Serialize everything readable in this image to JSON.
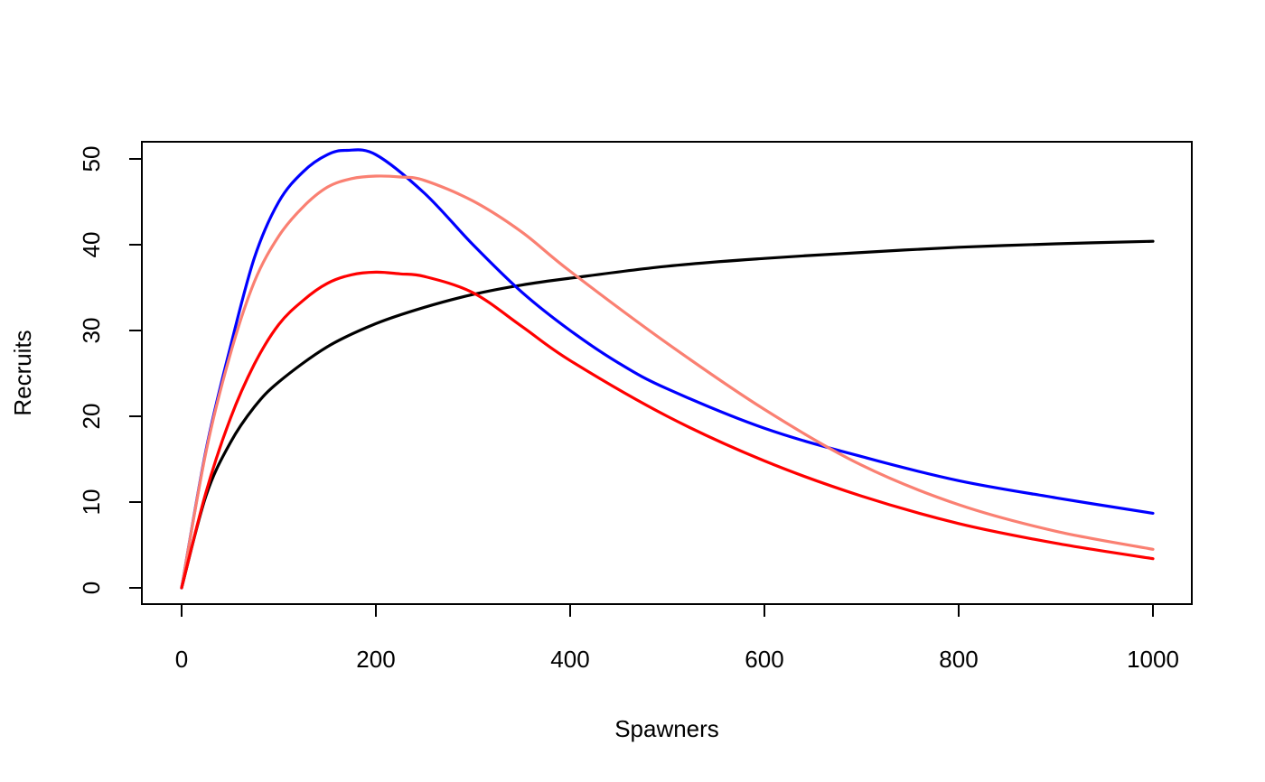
{
  "chart_data": {
    "type": "line",
    "title": "",
    "xlabel": "Spawners",
    "ylabel": "Recruits",
    "xlim": [
      0,
      1000
    ],
    "ylim": [
      0,
      52
    ],
    "xticks": [
      0,
      200,
      400,
      600,
      800,
      1000
    ],
    "yticks": [
      0,
      10,
      20,
      30,
      40,
      50
    ],
    "xtick_labels": [
      "0",
      "200",
      "400",
      "600",
      "800",
      "1000"
    ],
    "ytick_labels": [
      "0",
      "10",
      "20",
      "30",
      "40",
      "50"
    ],
    "grid": false,
    "legend": "none",
    "series": [
      {
        "color": "#000000",
        "x": [
          0,
          25,
          50,
          75,
          100,
          150,
          200,
          250,
          300,
          350,
          400,
          500,
          600,
          700,
          800,
          900,
          1000
        ],
        "y": [
          0,
          10.7,
          16.9,
          21.1,
          24.0,
          28.1,
          30.8,
          32.7,
          34.2,
          35.3,
          36.1,
          37.5,
          38.4,
          39.1,
          39.7,
          40.1,
          40.4
        ]
      },
      {
        "color": "#0000ff",
        "x": [
          0,
          25,
          50,
          75,
          100,
          125,
          150,
          170,
          200,
          250,
          300,
          350,
          400,
          450,
          500,
          600,
          700,
          800,
          900,
          1000
        ],
        "y": [
          0,
          16,
          28,
          38.5,
          45,
          48.5,
          50.5,
          51,
          50.5,
          46,
          40,
          34.5,
          30,
          26.2,
          23.2,
          18.6,
          15.3,
          12.5,
          10.5,
          8.7
        ]
      },
      {
        "color": "#fa8072",
        "x": [
          0,
          25,
          50,
          75,
          100,
          125,
          150,
          175,
          200,
          225,
          250,
          300,
          350,
          400,
          500,
          600,
          700,
          800,
          900,
          1000
        ],
        "y": [
          0,
          15.8,
          27.2,
          35.7,
          41.0,
          44.4,
          46.7,
          47.7,
          48.0,
          47.9,
          47.5,
          45.1,
          41.5,
          36.9,
          28.5,
          20.8,
          14.3,
          9.7,
          6.6,
          4.5
        ]
      },
      {
        "color": "#ff0000",
        "x": [
          0,
          25,
          50,
          75,
          100,
          125,
          150,
          175,
          200,
          225,
          250,
          300,
          350,
          400,
          500,
          600,
          700,
          800,
          900,
          1000
        ],
        "y": [
          0,
          11.1,
          19.7,
          26.1,
          30.7,
          33.5,
          35.5,
          36.5,
          36.8,
          36.6,
          36.3,
          34.4,
          30.5,
          26.5,
          20.0,
          14.8,
          10.7,
          7.5,
          5.2,
          3.4
        ]
      }
    ]
  }
}
